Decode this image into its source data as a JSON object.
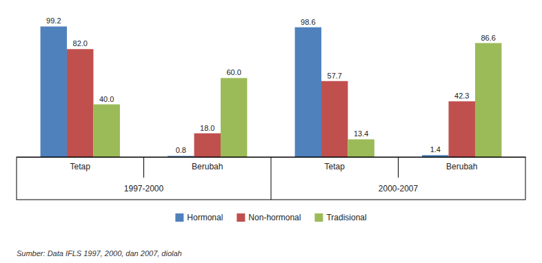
{
  "chart_data": {
    "type": "bar",
    "categories": [
      "Tetap",
      "Berubah",
      "Tetap",
      "Berubah"
    ],
    "periods": [
      "1997-2000",
      "1997-2000",
      "2000-2007",
      "2000-2007"
    ],
    "series": [
      {
        "name": "Hormonal",
        "color": "#4F81BD",
        "values": [
          99.2,
          0.8,
          98.6,
          1.4
        ]
      },
      {
        "name": "Non-hormonal",
        "color": "#C0504D",
        "values": [
          82.0,
          18.0,
          57.7,
          42.3
        ],
        "value_labels": [
          "82.0",
          "18.0",
          "57.7",
          "42.3"
        ]
      },
      {
        "name": "Tradisional",
        "color": "#9BBB59",
        "values": [
          40.0,
          60.0,
          13.4,
          86.6
        ],
        "value_labels": [
          "40.0",
          "60.0",
          "13.4",
          "86.6"
        ]
      }
    ],
    "ylim": [
      0,
      112
    ],
    "data_labels": true,
    "tick_labels": "x",
    "grid": false,
    "legend": "bottom",
    "source": "Sumber: Data IFLS 1997, 2000, dan 2007, diolah"
  }
}
